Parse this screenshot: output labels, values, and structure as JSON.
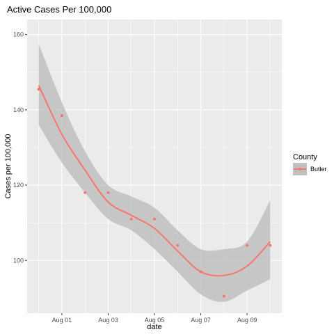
{
  "chart_data": {
    "type": "scatter",
    "title": "Active Cases Per 100,000",
    "xlabel": "date",
    "ylabel": "Cases per 100,000",
    "x_tick_labels": [
      "Aug 01",
      "Aug 03",
      "Aug 05",
      "Aug 07",
      "Aug 09"
    ],
    "x_tick_days": [
      1,
      3,
      5,
      7,
      9
    ],
    "y_ticks": [
      100,
      120,
      140,
      160
    ],
    "xlim": [
      -0.5,
      10.5
    ],
    "ylim": [
      86,
      164
    ],
    "legend": {
      "title": "County",
      "position": "right",
      "entries": [
        "Butler"
      ]
    },
    "series": [
      {
        "name": "Butler",
        "color": "#F8766D",
        "x": [
          0,
          1,
          2,
          3,
          4,
          5,
          6,
          7,
          8,
          9,
          10
        ],
        "points": [
          145.5,
          138.5,
          118,
          118,
          111,
          111,
          104,
          97,
          90.5,
          104,
          104
        ],
        "smooth": [
          146.5,
          133.5,
          124,
          115.5,
          112,
          108.5,
          102.5,
          97,
          96,
          98.5,
          105
        ],
        "ci_upper": [
          157.5,
          142,
          129,
          120,
          117,
          114,
          108,
          103,
          103,
          105,
          116
        ],
        "ci_lower": [
          136,
          126,
          118,
          111,
          108,
          103,
          97,
          91,
          89,
          92,
          95
        ]
      }
    ]
  },
  "colors": {
    "panel_bg": "#EBEBEB",
    "grid_major": "#FFFFFF",
    "ribbon": "#C0C0C0"
  }
}
